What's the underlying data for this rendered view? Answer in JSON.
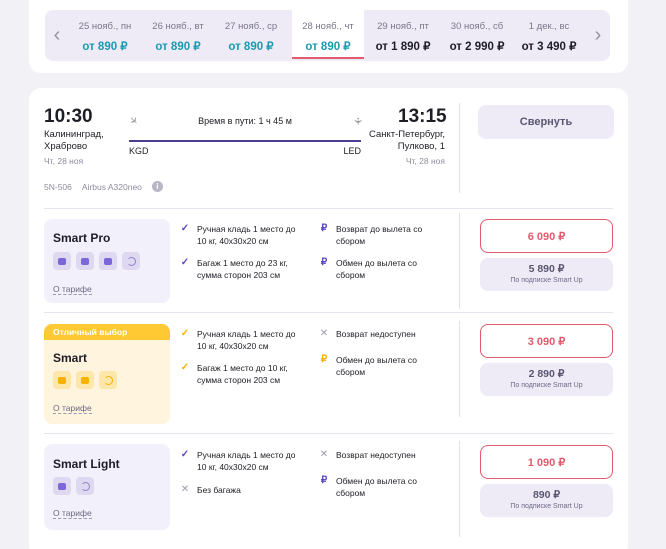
{
  "dates": [
    {
      "date": "25 нояб., пн",
      "price": "от 890 ₽",
      "cheap": true
    },
    {
      "date": "26 нояб., вт",
      "price": "от 890 ₽",
      "cheap": true
    },
    {
      "date": "27 нояб., ср",
      "price": "от 890 ₽",
      "cheap": true
    },
    {
      "date": "28 нояб., чт",
      "price": "от 890 ₽",
      "cheap": true,
      "selected": true
    },
    {
      "date": "29 нояб., пт",
      "price": "от 1 890 ₽",
      "cheap": false
    },
    {
      "date": "30 нояб., сб",
      "price": "от 2 990 ₽",
      "cheap": false
    },
    {
      "date": "1 дек., вс",
      "price": "от 3 490 ₽",
      "cheap": false
    }
  ],
  "flight": {
    "dep_time": "10:30",
    "dep_city": "Калининград, Храброво",
    "dep_date": "Чт, 28 ноя",
    "dep_code": "KGD",
    "arr_time": "13:15",
    "arr_city": "Санкт-Петербург, Пулково, 1",
    "arr_date": "Чт, 28 ноя",
    "arr_code": "LED",
    "duration": "Время в пути: 1 ч 45 м",
    "flight_no": "5N-506",
    "aircraft": "Airbus A320neo",
    "collapse_label": "Свернуть"
  },
  "tariffs": [
    {
      "name": "Smart Pro",
      "badge": "",
      "link": "О тарифе",
      "features_left": [
        "Ручная кладь 1 место до 10 кг, 40x30x20 см",
        "Багаж 1 место до 23 кг, сумма сторон 203 см"
      ],
      "features_right": [
        "Возврат до вылета со сбором",
        "Обмен до вылета со сбором"
      ],
      "price": "6 090 ₽",
      "sub_price": "5 890 ₽",
      "sub_label": "По подписке Smart Up"
    },
    {
      "name": "Smart",
      "badge": "Отличный выбор",
      "link": "О тарифе",
      "features_left": [
        "Ручная кладь 1 место до 10 кг, 40x30x20 см",
        "Багаж 1 место до 10 кг, сумма сторон 203 см"
      ],
      "features_right": [
        "Возврат недоступен",
        "Обмен до вылета со сбором"
      ],
      "price": "3 090 ₽",
      "sub_price": "2 890 ₽",
      "sub_label": "По подписке Smart Up"
    },
    {
      "name": "Smart Light",
      "badge": "",
      "link": "О тарифе",
      "features_left": [
        "Ручная кладь 1 место до 10 кг, 40x30x20 см",
        "Без багажа"
      ],
      "features_right": [
        "Возврат недоступен",
        "Обмен до вылета со сбором"
      ],
      "price": "1 090 ₽",
      "sub_price": "890 ₽",
      "sub_label": "По подписке Smart Up"
    }
  ],
  "colors": {
    "accent": "#5b49c1",
    "price_red": "#e25a6b",
    "cheap_teal": "#1a9ab0",
    "badge_yellow": "#ffc933"
  }
}
